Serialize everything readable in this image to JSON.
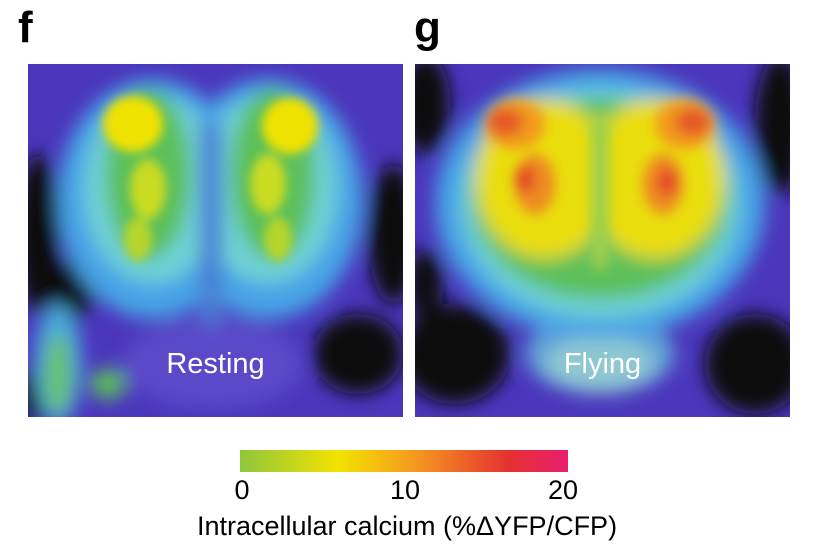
{
  "panels": [
    {
      "letter": "f",
      "caption": "Resting"
    },
    {
      "letter": "g",
      "caption": "Flying"
    }
  ],
  "colorbar": {
    "ticks": [
      "0",
      "10",
      "20"
    ],
    "label": "Intracellular calcium (%ΔYFP/CFP)",
    "colors": [
      "#8fc63c",
      "#f3e300",
      "#f59320",
      "#e43131",
      "#e91e6e"
    ]
  }
}
